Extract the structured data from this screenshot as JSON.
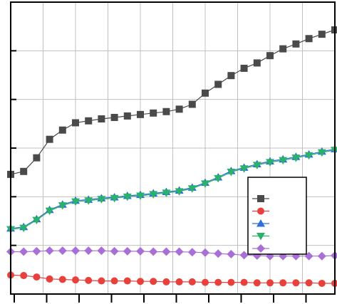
{
  "chart_data": {
    "type": "line",
    "title": "",
    "xlabel": "",
    "ylabel": "",
    "grid": true,
    "legend_position": "bottom-right",
    "xlim": [
      0,
      10
    ],
    "ylim": [
      0,
      6
    ],
    "x": [
      0,
      0.4,
      0.8,
      1.2,
      1.6,
      2.0,
      2.4,
      2.8,
      3.2,
      3.6,
      4.0,
      4.4,
      4.8,
      5.2,
      5.6,
      6.0,
      6.4,
      6.8,
      7.2,
      7.6,
      8.0,
      8.4,
      8.8,
      9.2,
      9.6,
      10.0
    ],
    "series": [
      {
        "color": "#4a4a4a",
        "marker": "square",
        "values": [
          2.46,
          2.52,
          2.8,
          3.18,
          3.37,
          3.52,
          3.56,
          3.6,
          3.63,
          3.66,
          3.69,
          3.72,
          3.75,
          3.8,
          3.9,
          4.13,
          4.31,
          4.49,
          4.64,
          4.75,
          4.9,
          5.04,
          5.14,
          5.25,
          5.34,
          5.43
        ]
      },
      {
        "color": "#e8413c",
        "marker": "circle",
        "values": [
          0.39,
          0.38,
          0.35,
          0.31,
          0.3,
          0.29,
          0.28,
          0.27,
          0.27,
          0.27,
          0.26,
          0.26,
          0.25,
          0.25,
          0.25,
          0.24,
          0.24,
          0.24,
          0.24,
          0.23,
          0.23,
          0.23,
          0.23,
          0.23,
          0.22,
          0.22
        ]
      },
      {
        "color": "#2e6fd9",
        "marker": "triangle-up",
        "values": [
          1.35,
          1.38,
          1.54,
          1.73,
          1.84,
          1.92,
          1.94,
          1.97,
          1.99,
          2.02,
          2.04,
          2.07,
          2.1,
          2.13,
          2.19,
          2.29,
          2.4,
          2.53,
          2.6,
          2.67,
          2.73,
          2.77,
          2.82,
          2.87,
          2.93,
          2.98
        ]
      },
      {
        "color": "#2ab26a",
        "marker": "triangle-down",
        "values": [
          1.33,
          1.36,
          1.52,
          1.71,
          1.82,
          1.9,
          1.92,
          1.95,
          1.97,
          2.0,
          2.02,
          2.05,
          2.08,
          2.11,
          2.17,
          2.27,
          2.38,
          2.51,
          2.58,
          2.65,
          2.71,
          2.75,
          2.8,
          2.85,
          2.91,
          2.96
        ]
      },
      {
        "color": "#a86fd6",
        "marker": "diamond",
        "values": [
          0.87,
          0.87,
          0.88,
          0.89,
          0.89,
          0.89,
          0.89,
          0.89,
          0.88,
          0.88,
          0.88,
          0.87,
          0.87,
          0.87,
          0.86,
          0.85,
          0.83,
          0.82,
          0.8,
          0.79,
          0.78,
          0.78,
          0.78,
          0.78,
          0.78,
          0.79
        ]
      }
    ]
  }
}
